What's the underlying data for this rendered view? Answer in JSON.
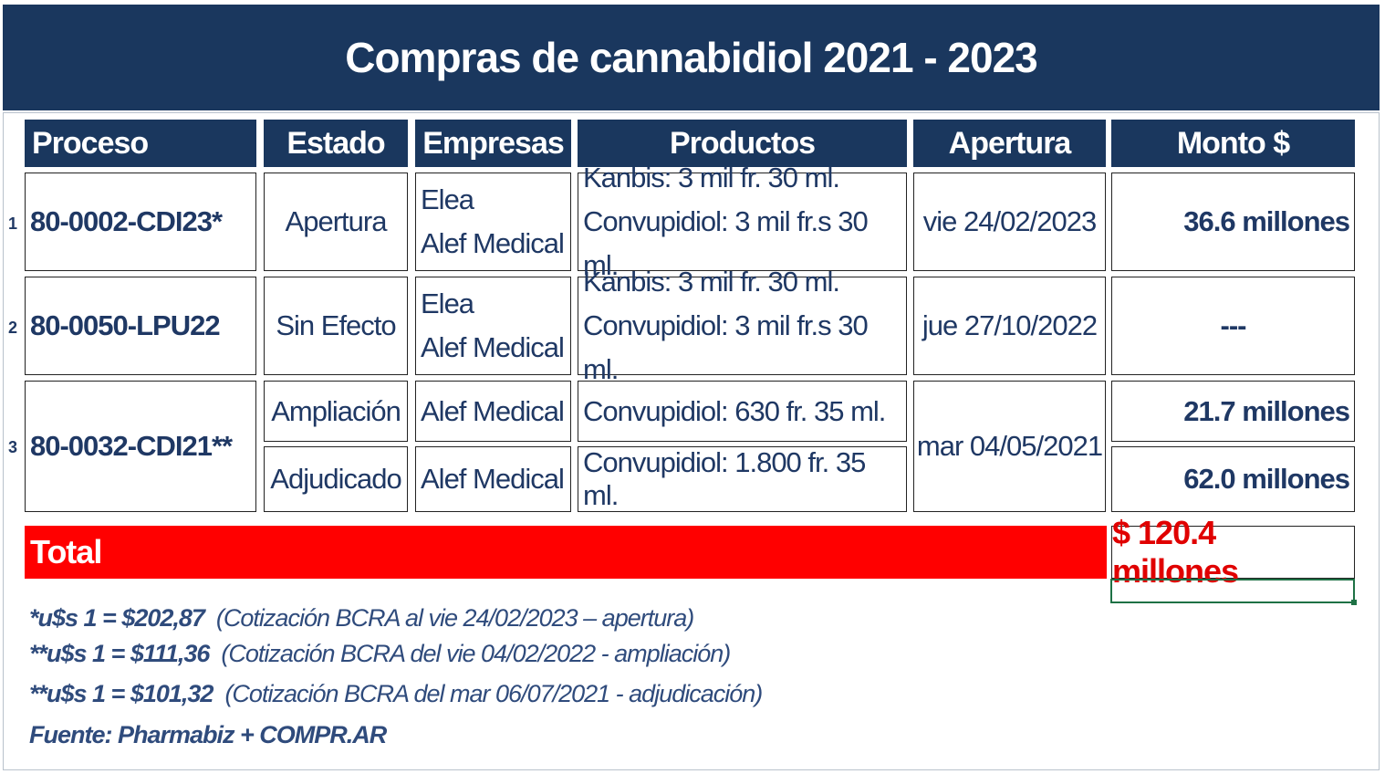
{
  "title": "Compras de cannabidiol  2021 - 2023",
  "headers": [
    "Proceso",
    "Estado",
    "Empresas",
    "Productos",
    "Apertura",
    "Monto $"
  ],
  "rows": [
    {
      "num": "1",
      "proceso": "80-0002-CDI23*",
      "estado": "Apertura",
      "empresas": [
        "Elea",
        "Alef Medical"
      ],
      "productos": [
        "Kanbis: 3 mil fr. 30 ml.",
        "Convupidiol: 3 mil fr.s 30 ml."
      ],
      "apertura": "vie 24/02/2023",
      "monto": "36.6 millones"
    },
    {
      "num": "2",
      "proceso": "80-0050-LPU22",
      "estado": "Sin Efecto",
      "empresas": [
        "Elea",
        "Alef Medical"
      ],
      "productos": [
        "Kanbis: 3 mil fr. 30 ml.",
        "Convupidiol: 3 mil fr.s 30 ml."
      ],
      "apertura": "jue 27/10/2022",
      "monto": "---"
    },
    {
      "num": "3",
      "proceso": "80-0032-CDI21**",
      "apertura": "mar 04/05/2021",
      "sub": [
        {
          "estado": "Ampliación",
          "empresas": "Alef Medical",
          "productos": "Convupidiol: 630 fr. 35 ml.",
          "monto": "21.7 millones"
        },
        {
          "estado": "Adjudicado",
          "empresas": "Alef Medical",
          "productos": "Convupidiol: 1.800 fr. 35 ml.",
          "monto": "62.0 millones"
        }
      ]
    }
  ],
  "total": {
    "label": "Total",
    "value": "$ 120.4 millones"
  },
  "notes": [
    {
      "bold": "*u$s 1 = $202,87",
      "rest": "  (Cotización BCRA al vie 24/02/2023 – apertura)"
    },
    {
      "bold": "**u$s 1 = $111,36",
      "rest": "  (Cotización BCRA del vie 04/02/2022 - ampliación)"
    },
    {
      "bold": "**u$s 1 = $101,32",
      "rest": "  (Cotización BCRA del mar 06/07/2021 - adjudicación)"
    }
  ],
  "source": "Fuente: Pharmabiz + COMPR.AR",
  "colors": {
    "navy": "#1a375e",
    "text": "#1f3864",
    "red": "#ff0000"
  }
}
